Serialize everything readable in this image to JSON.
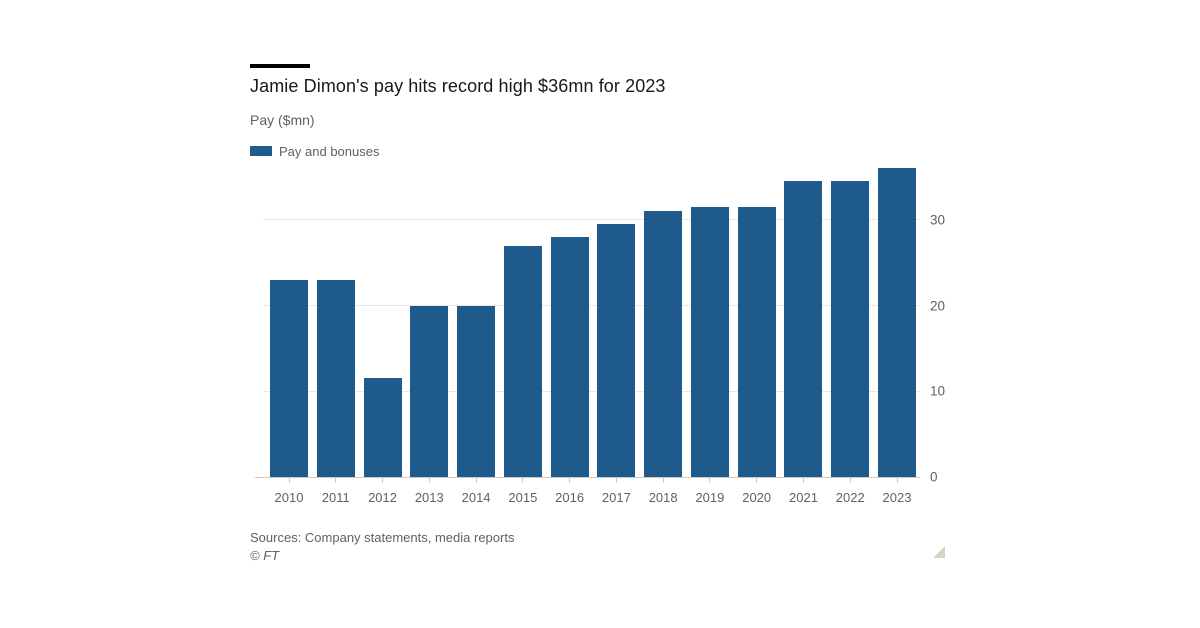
{
  "header": {
    "title": "Jamie Dimon's pay hits record high $36mn for 2023",
    "subtitle": "Pay ($mn)"
  },
  "legend": {
    "label": "Pay and bonuses"
  },
  "chart_data": {
    "type": "bar",
    "title": "Jamie Dimon's pay hits record high $36mn for 2023",
    "subtitle": "Pay ($mn)",
    "categories": [
      "2010",
      "2011",
      "2012",
      "2013",
      "2014",
      "2015",
      "2016",
      "2017",
      "2018",
      "2019",
      "2020",
      "2021",
      "2022",
      "2023"
    ],
    "series": [
      {
        "name": "Pay and bonuses",
        "color": "#1f5a8d",
        "values": [
          23,
          23,
          11.5,
          20,
          20,
          27,
          28,
          29.5,
          31,
          31.5,
          31.5,
          34.5,
          34.5,
          36
        ]
      }
    ],
    "xlabel": "",
    "ylabel": "Pay ($mn)",
    "yticks": [
      0,
      10,
      20,
      30
    ],
    "ylim": [
      0,
      36.4
    ],
    "grid": "horizontal",
    "legend_position": "top-left",
    "y_axis_side": "right"
  },
  "footer": {
    "sources": "Sources: Company statements, media reports",
    "copyright": "© FT"
  },
  "colors": {
    "bar": "#1f5a8d",
    "title_text": "#1a1817",
    "secondary_text": "#66605c",
    "gridline": "#e9e7e4",
    "axis_line": "#cfc9c2",
    "corner_triangle": "#d9d2c9",
    "background": "#ffffff"
  }
}
